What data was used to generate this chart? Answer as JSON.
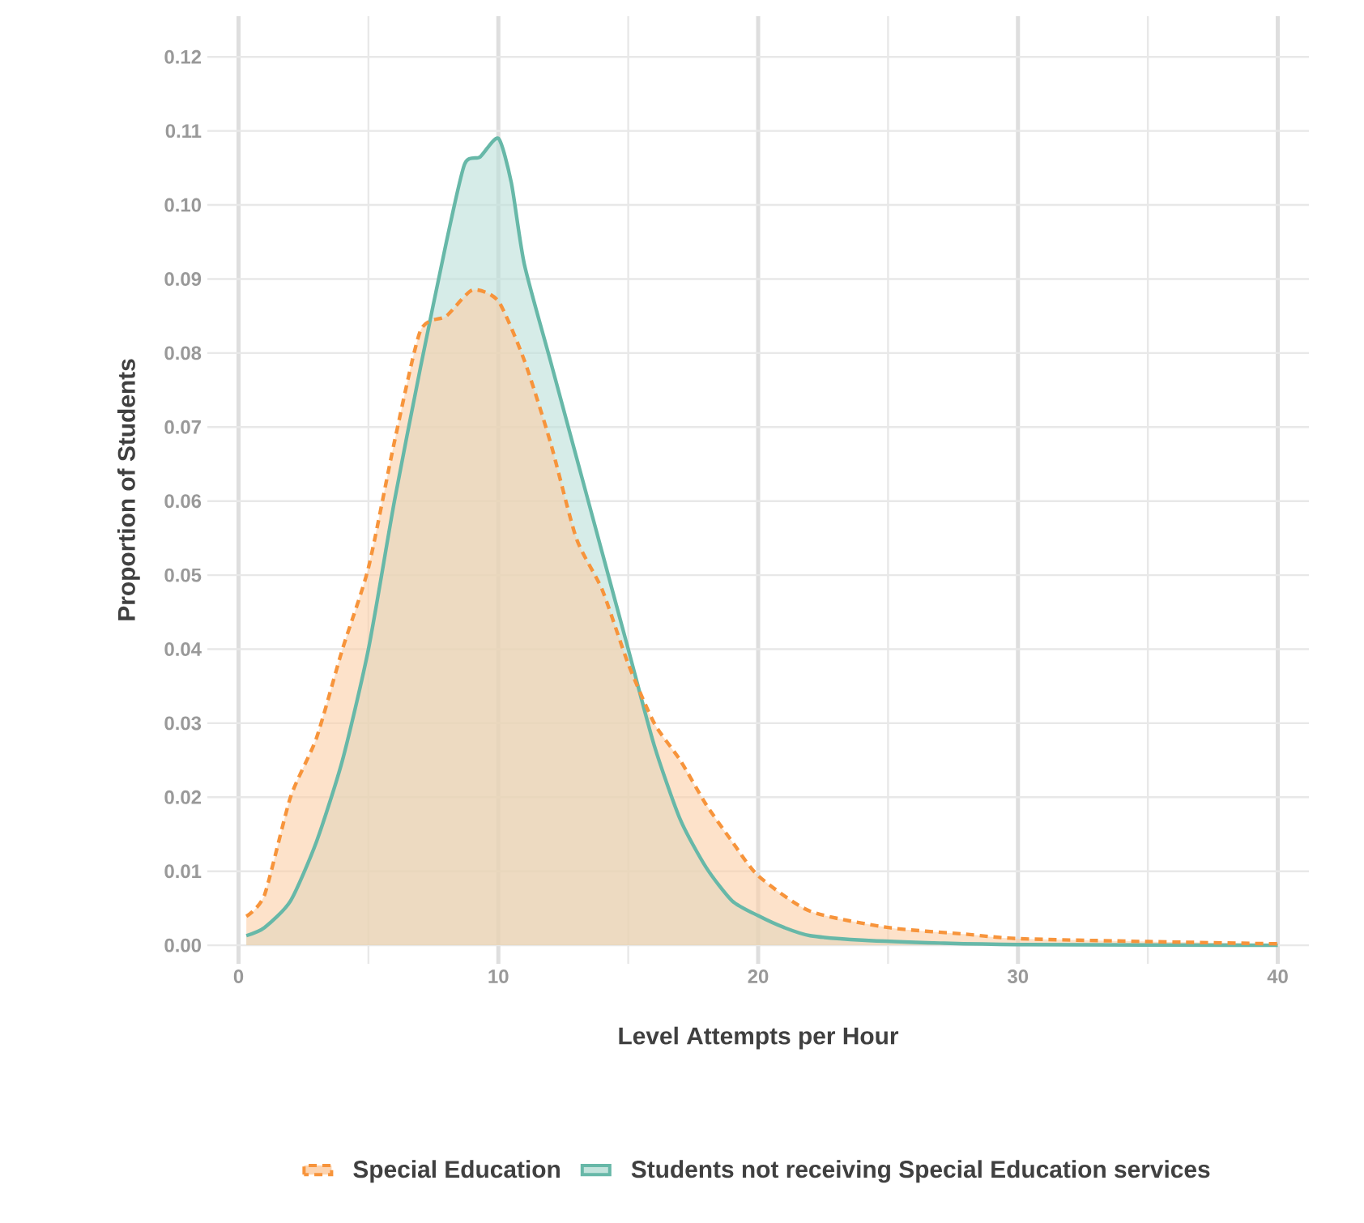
{
  "chart_data": {
    "type": "area",
    "xlabel": "Level Attempts per Hour",
    "ylabel": "Proportion of Students",
    "xlim": [
      -1.2,
      41.2
    ],
    "ylim": [
      -0.0025,
      0.1255
    ],
    "xticks": [
      0,
      10,
      20,
      30,
      40
    ],
    "yticks": [
      {
        "value": 0,
        "label": "0.00"
      },
      {
        "value": 0.01,
        "label": "0.01"
      },
      {
        "value": 0.02,
        "label": "0.02"
      },
      {
        "value": 0.03,
        "label": "0.03"
      },
      {
        "value": 0.04,
        "label": "0.04"
      },
      {
        "value": 0.05,
        "label": "0.05"
      },
      {
        "value": 0.06,
        "label": "0.06"
      },
      {
        "value": 0.07,
        "label": "0.07"
      },
      {
        "value": 0.08,
        "label": "0.08"
      },
      {
        "value": 0.09,
        "label": "0.09"
      },
      {
        "value": 0.1,
        "label": "0.10"
      },
      {
        "value": 0.11,
        "label": "0.11"
      },
      {
        "value": 0.12,
        "label": "0.12"
      }
    ],
    "grid": true,
    "legend": "bottom",
    "series": [
      {
        "name": "Special Education",
        "color": "#f7943b",
        "line_style": "dashed",
        "x": [
          0.3,
          1,
          2,
          3,
          4,
          5,
          6,
          7,
          8,
          9,
          10,
          11,
          12,
          13,
          14,
          15,
          16,
          17,
          18,
          19,
          20,
          22,
          25,
          28,
          30,
          35,
          40
        ],
        "values": [
          0.0039,
          0.0068,
          0.02,
          0.028,
          0.04,
          0.051,
          0.068,
          0.083,
          0.085,
          0.0885,
          0.087,
          0.079,
          0.068,
          0.055,
          0.048,
          0.038,
          0.03,
          0.025,
          0.019,
          0.014,
          0.0094,
          0.0046,
          0.0024,
          0.0015,
          0.0009,
          0.0005,
          0.0002
        ]
      },
      {
        "name": "Students not receiving Special Education services",
        "color": "#67b8a8",
        "line_style": "solid",
        "x": [
          0.3,
          1,
          2,
          3,
          4,
          5,
          6,
          7,
          8,
          8.7,
          9.3,
          10,
          10.5,
          11,
          12,
          13,
          14,
          15,
          16,
          17,
          18,
          19,
          20,
          21,
          22,
          24,
          27,
          30,
          40
        ],
        "values": [
          0.0013,
          0.0024,
          0.006,
          0.014,
          0.025,
          0.04,
          0.06,
          0.078,
          0.095,
          0.1055,
          0.1065,
          0.109,
          0.103,
          0.092,
          0.079,
          0.066,
          0.053,
          0.04,
          0.027,
          0.017,
          0.0105,
          0.006,
          0.004,
          0.0024,
          0.0013,
          0.0007,
          0.0003,
          0.0001,
          0
        ]
      }
    ]
  }
}
